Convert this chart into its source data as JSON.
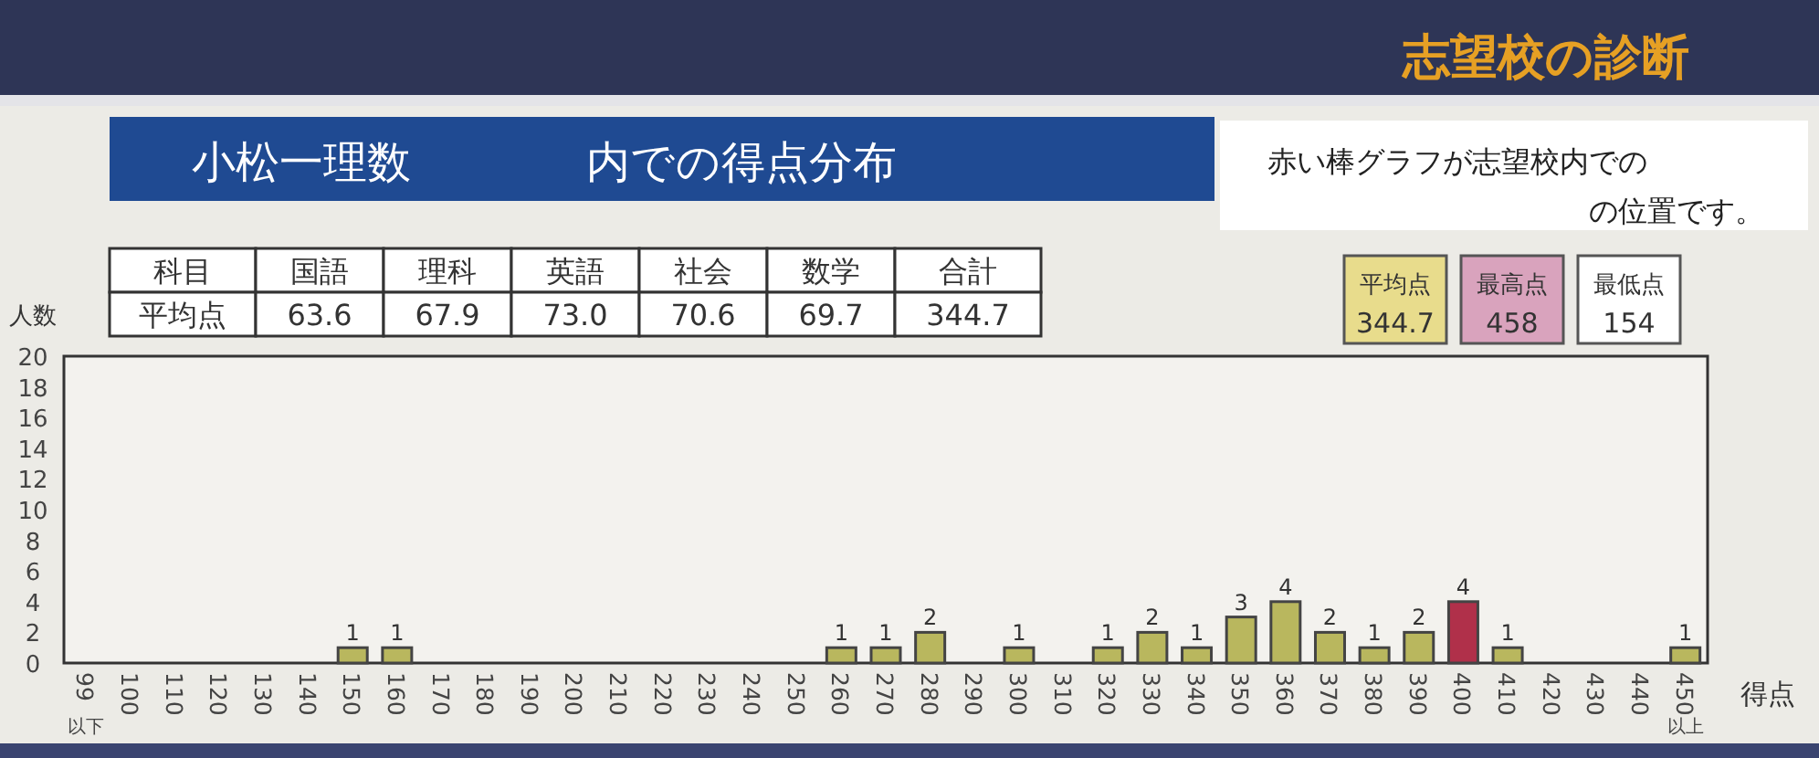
{
  "chart_data": {
    "type": "bar",
    "title": "小松一理数　　　　内での得点分布",
    "subtitle": "志望校の診断",
    "xlabel": "得点",
    "ylabel": "人数",
    "categories": [
      "99以下",
      "100",
      "110",
      "120",
      "130",
      "140",
      "150",
      "160",
      "170",
      "180",
      "190",
      "200",
      "210",
      "220",
      "230",
      "240",
      "250",
      "260",
      "270",
      "280",
      "290",
      "300",
      "310",
      "320",
      "330",
      "340",
      "350",
      "360",
      "370",
      "380",
      "390",
      "400",
      "410",
      "420",
      "430",
      "440",
      "450以上"
    ],
    "values": [
      0,
      0,
      0,
      0,
      0,
      0,
      1,
      1,
      0,
      0,
      0,
      0,
      0,
      0,
      0,
      0,
      0,
      1,
      1,
      2,
      0,
      1,
      0,
      1,
      2,
      1,
      3,
      4,
      2,
      1,
      2,
      4,
      1,
      0,
      0,
      0,
      1
    ],
    "value_labels": [
      null,
      null,
      null,
      null,
      null,
      null,
      "1",
      "1",
      null,
      null,
      null,
      null,
      null,
      null,
      null,
      null,
      null,
      "1",
      "1",
      "2",
      null,
      "1",
      null,
      "1",
      "2",
      "1",
      "3",
      "4",
      "2",
      "1",
      "2",
      "4",
      "1",
      null,
      null,
      null,
      "1"
    ],
    "colors": [
      "#b9b75e",
      "#b9b75e",
      "#b9b75e",
      "#b9b75e",
      "#b9b75e",
      "#b9b75e",
      "#b9b75e",
      "#b9b75e",
      "#b9b75e",
      "#b9b75e",
      "#b9b75e",
      "#b9b75e",
      "#b9b75e",
      "#b9b75e",
      "#b9b75e",
      "#b9b75e",
      "#b9b75e",
      "#b9b75e",
      "#b9b75e",
      "#b9b75e",
      "#b9b75e",
      "#b9b75e",
      "#b9b75e",
      "#b9b75e",
      "#b9b75e",
      "#b9b75e",
      "#b9b75e",
      "#b9b75e",
      "#b9b75e",
      "#b9b75e",
      "#b9b75e",
      "#b0304a",
      "#b9b75e",
      "#b9b75e",
      "#b9b75e",
      "#b9b75e",
      "#b9b75e"
    ],
    "ylim": [
      0,
      20
    ],
    "yticks": [
      0,
      2,
      4,
      6,
      8,
      10,
      12,
      14,
      16,
      18,
      20
    ],
    "annotations": [
      "科目",
      "国語",
      "理科",
      "英語",
      "社会",
      "数学",
      "合計",
      "平均点",
      "63.6",
      "67.9",
      "73.0",
      "70.6",
      "69.7",
      "344.7",
      "平均点",
      "344.7",
      "最高点",
      "458",
      "最低点",
      "154",
      "赤い棒グラフが志望校内での",
      "の位置です。"
    ]
  }
}
